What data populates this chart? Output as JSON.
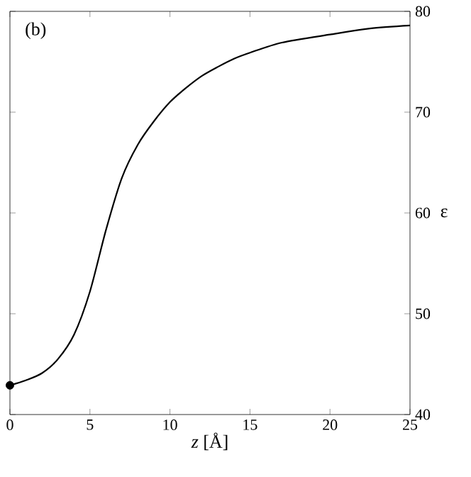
{
  "chart_data": {
    "type": "line",
    "xlabel": "*z* [Å]",
    "ylabel": "ε",
    "annotations": [
      "(b)"
    ],
    "xlim": [
      0,
      25
    ],
    "ylim": [
      40,
      80
    ],
    "xticks": [
      0,
      5,
      10,
      15,
      20,
      25
    ],
    "yticks": [
      40,
      50,
      60,
      70,
      80
    ],
    "grid": false,
    "series": [
      {
        "color": "#000000",
        "x": [
          0,
          1,
          2,
          3,
          4,
          5,
          6,
          7,
          8,
          9,
          10,
          11,
          12,
          13,
          14,
          15,
          17,
          20,
          22.5,
          25
        ],
        "values": [
          42.9,
          43.4,
          44.1,
          45.5,
          47.9,
          52.2,
          58.3,
          63.5,
          66.8,
          69.1,
          71.0,
          72.4,
          73.6,
          74.5,
          75.3,
          75.9,
          76.9,
          77.7,
          78.3,
          78.6
        ]
      },
      {
        "type": "scatter",
        "marker": "circle",
        "color": "#000000",
        "x": [
          0
        ],
        "values": [
          42.9
        ]
      }
    ]
  }
}
